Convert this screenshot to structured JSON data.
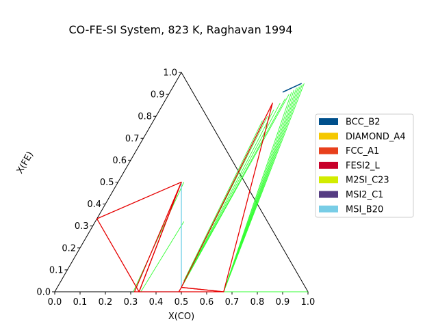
{
  "chart_data": {
    "type": "ternary",
    "title": "CO-FE-SI System, 823 K, Raghavan 1994",
    "xlabel": "X(CO)",
    "ylabel": "X(FE)",
    "xlim": [
      0,
      1
    ],
    "ylim": [
      0,
      1
    ],
    "x_ticks": [
      "0.0",
      "0.1",
      "0.2",
      "0.3",
      "0.4",
      "0.5",
      "0.6",
      "0.7",
      "0.8",
      "0.9",
      "1.0"
    ],
    "y_ticks": [
      "0.0",
      "0.1",
      "0.2",
      "0.3",
      "0.4",
      "0.5",
      "0.6",
      "0.7",
      "0.8",
      "0.9",
      "1.0"
    ],
    "legend_position": "right",
    "legend": [
      {
        "name": "BCC_B2",
        "color": "#00508c"
      },
      {
        "name": "DIAMOND_A4",
        "color": "#f5c800"
      },
      {
        "name": "FCC_A1",
        "color": "#e8401c"
      },
      {
        "name": "FESI2_L",
        "color": "#c8002a"
      },
      {
        "name": "M2SI_C23",
        "color": "#d2ec00"
      },
      {
        "name": "MSI2_C1",
        "color": "#553c82"
      },
      {
        "name": "MSI_B20",
        "color": "#78cde6"
      }
    ],
    "colors": {
      "triangle": "#e60000",
      "boundary": "#6ccfe6",
      "tie_line": "#33ff33",
      "bcc_b2": "#00508c",
      "frame": "#000000"
    },
    "triangles": [
      [
        [
          0.333,
          0.0
        ],
        [
          0.5,
          0.0
        ],
        [
          0.5,
          0.0
        ]
      ],
      [
        [
          0.25,
          0.5
        ],
        [
          0.315,
          0.0
        ],
        [
          0.333,
          0.0
        ]
      ],
      [
        [
          0.0,
          0.333
        ],
        [
          0.25,
          0.5
        ],
        [
          0.333,
          0.0
        ]
      ],
      [
        [
          0.49,
          0.02
        ],
        [
          0.667,
          0.0
        ],
        [
          0.49,
          0.0
        ]
      ],
      [
        [
          0.43,
          0.86
        ],
        [
          0.49,
          0.02
        ],
        [
          0.667,
          0.0
        ]
      ]
    ],
    "boundaries": [
      [
        [
          0.25,
          0.5
        ],
        [
          0.49,
          0.02
        ]
      ],
      [
        [
          0.333,
          0.0
        ],
        [
          0.5,
          0.0
        ]
      ]
    ],
    "bcc_b2_segment": [
      [
        0.445,
        0.91
      ],
      [
        0.5,
        0.95
      ]
    ],
    "tie_lines": [
      {
        "from": [
          0.43,
          0.78
        ],
        "to": [
          0.485,
          0.05
        ]
      },
      {
        "from": [
          0.44,
          0.8
        ],
        "to": [
          0.488,
          0.04
        ]
      },
      {
        "from": [
          0.45,
          0.83
        ],
        "to": [
          0.49,
          0.03
        ]
      },
      {
        "from": [
          0.46,
          0.86
        ],
        "to": [
          0.49,
          0.03
        ]
      },
      {
        "from": [
          0.47,
          0.88
        ],
        "to": [
          0.49,
          0.03
        ]
      },
      {
        "from": [
          0.475,
          0.9
        ],
        "to": [
          0.49,
          0.03
        ]
      },
      {
        "from": [
          0.48,
          0.91
        ],
        "to": [
          0.667,
          0.0
        ]
      },
      {
        "from": [
          0.485,
          0.92
        ],
        "to": [
          0.667,
          0.0
        ]
      },
      {
        "from": [
          0.49,
          0.93
        ],
        "to": [
          0.667,
          0.0
        ]
      },
      {
        "from": [
          0.495,
          0.935
        ],
        "to": [
          0.667,
          0.0
        ]
      },
      {
        "from": [
          0.5,
          0.94
        ],
        "to": [
          0.667,
          0.0
        ]
      },
      {
        "from": [
          0.505,
          0.945
        ],
        "to": [
          0.667,
          0.0
        ]
      },
      {
        "from": [
          0.51,
          0.95
        ],
        "to": [
          0.667,
          0.0
        ]
      },
      {
        "from": [
          0.34,
          0.0
        ],
        "to": [
          0.35,
          0.32
        ]
      },
      {
        "from": [
          0.26,
          0.5
        ],
        "to": [
          0.31,
          0.0
        ]
      },
      {
        "from": [
          0.667,
          0.0
        ],
        "to": [
          1.0,
          0.0
        ]
      }
    ]
  }
}
